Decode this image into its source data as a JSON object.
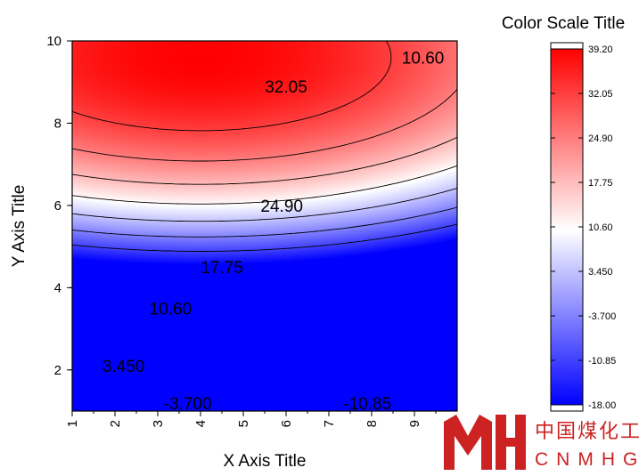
{
  "chart_data": {
    "type": "heatmap",
    "subtype": "filled-contour",
    "title": "",
    "xlabel": "X Axis Title",
    "ylabel": "Y Axis Title",
    "xlim": [
      1,
      10
    ],
    "ylim": [
      1,
      10
    ],
    "x_ticks": [
      "1",
      "2",
      "3",
      "4",
      "5",
      "6",
      "7",
      "8",
      "9"
    ],
    "y_ticks": [
      "2",
      "4",
      "6",
      "8",
      "10"
    ],
    "z_peak": {
      "x": 4.0,
      "y": 9.6,
      "value": 39.2
    },
    "contour_levels": [
      {
        "value": -10.85,
        "label": "-10.85",
        "label_x": 7.9,
        "label_y": 1.2
      },
      {
        "value": -3.7,
        "label": "-3.700",
        "label_x": 3.7,
        "label_y": 1.2
      },
      {
        "value": 3.45,
        "label": "3.450",
        "label_x": 2.2,
        "label_y": 2.1
      },
      {
        "value": 10.6,
        "label": "10.60",
        "label_x": 3.3,
        "label_y": 3.5
      },
      {
        "value": 17.75,
        "label": "17.75",
        "label_x": 4.5,
        "label_y": 4.5
      },
      {
        "value": 24.9,
        "label": "24.90",
        "label_x": 5.9,
        "label_y": 6.0
      },
      {
        "value": 32.05,
        "label": "32.05",
        "label_x": 6.0,
        "label_y": 8.9
      },
      {
        "value": 10.6,
        "label": "10.60",
        "label_x": 9.2,
        "label_y": 9.6
      }
    ],
    "colorbar": {
      "title": "Color Scale Title",
      "min": -18.0,
      "max": 39.2,
      "tick_labels": [
        "39.20",
        "32.05",
        "24.90",
        "17.75",
        "10.60",
        "3.450",
        "-3.700",
        "-10.85",
        "-18.00"
      ],
      "colors": {
        "low": "#0000ff",
        "mid": "#ffffff",
        "high": "#ff0000"
      }
    }
  },
  "watermark": {
    "text_cn": "中国煤化工",
    "text_en": "CNMHG",
    "color": "#cc2222"
  }
}
